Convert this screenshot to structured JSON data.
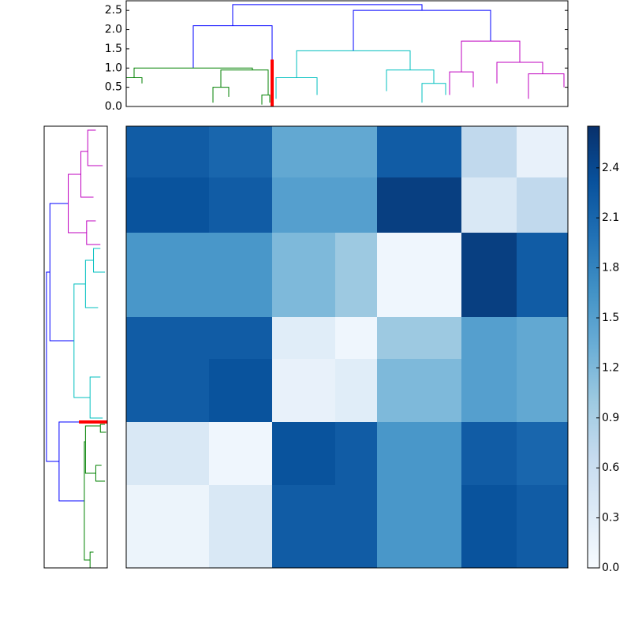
{
  "chart_data": {
    "type": "clustermap",
    "dendrogram": {
      "xlim": [
        0,
        560
      ],
      "ylim": [
        0,
        2.75
      ],
      "yticks": [
        {
          "value": 0,
          "label": "0.0"
        },
        {
          "value": 0.5,
          "label": "0.5"
        },
        {
          "value": 1,
          "label": "1.0"
        },
        {
          "value": 1.5,
          "label": "1.5"
        },
        {
          "value": 2,
          "label": "2.0"
        },
        {
          "value": 2.5,
          "label": "2.5"
        }
      ],
      "links": [
        {
          "x": [
            135,
            375
          ],
          "h": [
            2.1,
            2.65,
            2.5
          ],
          "color": "#0000ff"
        },
        {
          "x": [
            85,
            185
          ],
          "h": [
            1.0,
            2.1,
            1.2
          ],
          "color": "#0000ff"
        },
        {
          "x": [
            288,
            462
          ],
          "h": [
            1.45,
            2.5,
            1.7
          ],
          "color": "#0000ff"
        },
        {
          "x": [
            10,
            160
          ],
          "h": [
            0.75,
            1.0,
            0.95
          ],
          "color": "#008000"
        },
        {
          "x": [
            0,
            20
          ],
          "h": [
            0.2,
            0.75,
            0.6
          ],
          "color": "#008000"
        },
        {
          "x": [
            120,
            180
          ],
          "h": [
            0.5,
            0.95,
            0.3
          ],
          "color": "#008000"
        },
        {
          "x": [
            110,
            130
          ],
          "h": [
            0.1,
            0.5,
            0.25
          ],
          "color": "#008000"
        },
        {
          "x": [
            172,
            182
          ],
          "h": [
            0.05,
            0.3,
            0.1
          ],
          "color": "#008000"
        },
        {
          "x": [
            184,
            186
          ],
          "h": [
            0,
            1.2,
            0
          ],
          "color": "#ff0000"
        },
        {
          "x": [
            216,
            360
          ],
          "h": [
            0.75,
            1.45,
            0.95
          ],
          "color": "#00bfbf"
        },
        {
          "x": [
            190,
            242
          ],
          "h": [
            0.2,
            0.75,
            0.3
          ],
          "color": "#00bfbf"
        },
        {
          "x": [
            330,
            390
          ],
          "h": [
            0.4,
            0.95,
            0.6
          ],
          "color": "#00bfbf"
        },
        {
          "x": [
            375,
            405
          ],
          "h": [
            0.1,
            0.6,
            0.3
          ],
          "color": "#00bfbf"
        },
        {
          "x": [
            425,
            499
          ],
          "h": [
            0.9,
            1.7,
            1.15
          ],
          "color": "#bf00bf"
        },
        {
          "x": [
            410,
            440
          ],
          "h": [
            0.3,
            0.9,
            0.5
          ],
          "color": "#bf00bf"
        },
        {
          "x": [
            470,
            528
          ],
          "h": [
            0.6,
            1.15,
            0.85
          ],
          "color": "#bf00bf"
        },
        {
          "x": [
            510,
            555
          ],
          "h": [
            0.2,
            0.85,
            0.5
          ],
          "color": "#bf00bf"
        }
      ]
    },
    "heatmap": {
      "leaf_counts": [
        105,
        80,
        80,
        53,
        107,
        70,
        65
      ],
      "values": [
        [
          2.2,
          2.1,
          1.4,
          1.4,
          2.2,
          0.7,
          0.2
        ],
        [
          2.3,
          2.2,
          1.5,
          1.5,
          2.5,
          0.4,
          0.7
        ],
        [
          1.6,
          1.6,
          1.2,
          1.0,
          0.1,
          2.5,
          2.2
        ],
        [
          2.2,
          2.2,
          0.3,
          0.1,
          1.0,
          1.5,
          1.4
        ],
        [
          2.2,
          2.3,
          0.2,
          0.3,
          1.2,
          1.5,
          1.4
        ],
        [
          0.4,
          0.1,
          2.3,
          2.2,
          1.6,
          2.2,
          2.1
        ],
        [
          0.15,
          0.4,
          2.2,
          2.2,
          1.6,
          2.3,
          2.2
        ]
      ]
    },
    "colorbar": {
      "clim": [
        0,
        2.65
      ],
      "colormap": [
        "#f7fbff",
        "#deebf7",
        "#c6dbef",
        "#9ecae1",
        "#6baed6",
        "#4292c6",
        "#2171b5",
        "#08519c",
        "#08306b"
      ],
      "ticks": [
        {
          "value": 0,
          "label": "0.0"
        },
        {
          "value": 0.3,
          "label": "0.3"
        },
        {
          "value": 0.6,
          "label": "0.6"
        },
        {
          "value": 0.9,
          "label": "0.9"
        },
        {
          "value": 1.2,
          "label": "1.2"
        },
        {
          "value": 1.5,
          "label": "1.5"
        },
        {
          "value": 1.8,
          "label": "1.8"
        },
        {
          "value": 2.1,
          "label": "2.1"
        },
        {
          "value": 2.4,
          "label": "2.4"
        }
      ]
    }
  }
}
